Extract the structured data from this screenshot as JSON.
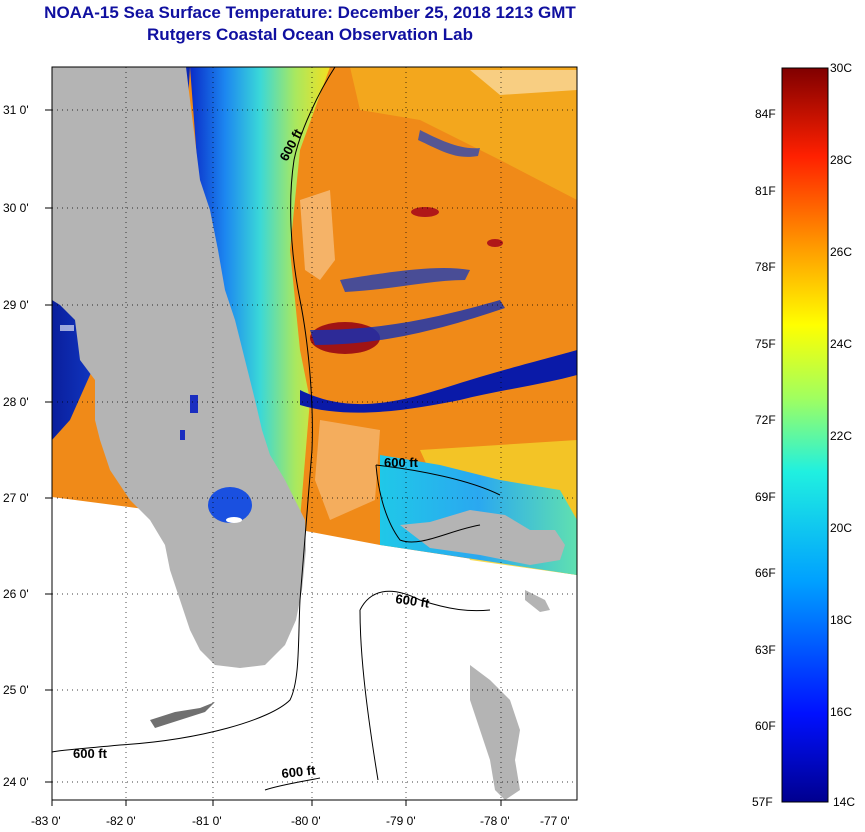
{
  "header": {
    "title_line1": "NOAA-15 Sea Surface Temperature:  December 25, 2018 1213 GMT",
    "title_line2": "Rutgers Coastal Ocean Observation Lab"
  },
  "axes": {
    "latitude_labels": [
      "31 0'",
      "30 0'",
      "29 0'",
      "28 0'",
      "27 0'",
      "26 0'",
      "25 0'",
      "24 0'"
    ],
    "longitude_labels": [
      "-83 0'",
      "-82 0'",
      "-81 0'",
      "-80 0'",
      "-79 0'",
      "-78 0'",
      "-77 0'"
    ]
  },
  "contour_labels": [
    "600 ft",
    "600 ft",
    "600 ft",
    "600 ft",
    "600 ft"
  ],
  "colorbar": {
    "celsius_labels": [
      "30C",
      "28C",
      "26C",
      "24C",
      "22C",
      "20C",
      "18C",
      "16C",
      "14C"
    ],
    "fahrenheit_labels": [
      "84F",
      "81F",
      "78F",
      "75F",
      "72F",
      "69F",
      "66F",
      "63F",
      "60F",
      "57F"
    ],
    "min_c": 14,
    "max_c": 30
  },
  "colors": {
    "title": "#1010a0",
    "land": "#b4b4b4",
    "warm": "#f08a18",
    "cold": "#0a1aa8"
  }
}
